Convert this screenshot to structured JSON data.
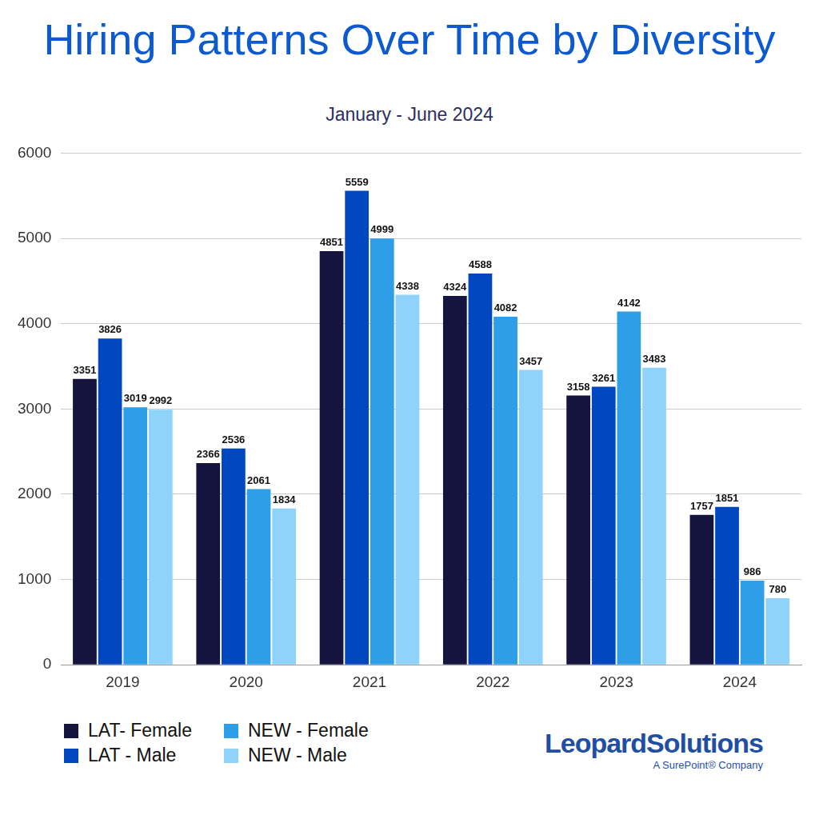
{
  "chart_data": {
    "type": "bar",
    "title": "Hiring Patterns Over Time by Diversity",
    "subtitle": "January - June 2024",
    "categories": [
      "2019",
      "2020",
      "2021",
      "2022",
      "2023",
      "2024"
    ],
    "series": [
      {
        "name": "LAT- Female",
        "color": "#14143f",
        "values": [
          3351,
          2366,
          4851,
          4324,
          3158,
          1757
        ]
      },
      {
        "name": "LAT - Male",
        "color": "#0047c0",
        "values": [
          3826,
          2536,
          5559,
          4588,
          3261,
          1851
        ]
      },
      {
        "name": "NEW - Female",
        "color": "#2f9ee8",
        "values": [
          3019,
          2061,
          4999,
          4082,
          4142,
          986
        ]
      },
      {
        "name": "NEW - Male",
        "color": "#8fd3fb",
        "values": [
          2992,
          1834,
          4338,
          3457,
          3483,
          780
        ]
      }
    ],
    "ylim": [
      0,
      6000
    ],
    "yticks": [
      0,
      1000,
      2000,
      3000,
      4000,
      5000,
      6000
    ],
    "grid": true,
    "data_labels": true,
    "legend": "bottom-left",
    "annotations": [
      {
        "text": "LeopardSolutions"
      },
      {
        "text": "A SurePoint® Company"
      }
    ]
  }
}
